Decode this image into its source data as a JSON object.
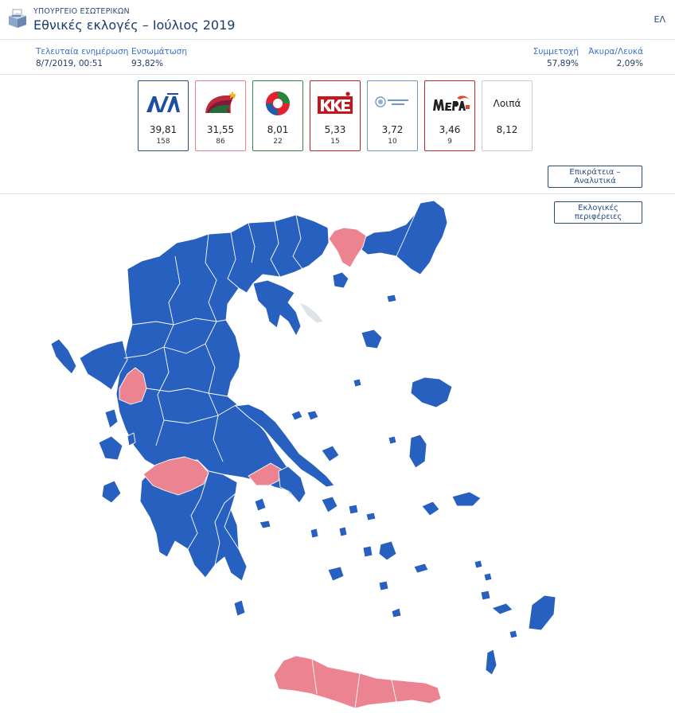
{
  "header": {
    "ministry": "ΥΠΟΥΡΓΕΙΟ ΕΣΩΤΕΡΙΚΩΝ",
    "title": "Εθνικές εκλογές – Ιούλιος 2019",
    "lang": "ΕΛ",
    "logo_icon": "ballot-box-icon"
  },
  "info": {
    "last_update_label": "Τελευταία ενημέρωση",
    "last_update_value": "8/7/2019, 00:51",
    "integration_label": "Ενσωμάτωση",
    "integration_value": "93,82%",
    "turnout_label": "Συμμετοχή",
    "turnout_value": "57,89%",
    "invalid_label": "Άκυρα/Λευκά",
    "invalid_value": "2,09%"
  },
  "parties": [
    {
      "emblem": "nd-logo",
      "pct": "39,81",
      "seats": "158",
      "color": "#2a4a8a"
    },
    {
      "emblem": "syriza-logo",
      "pct": "31,55",
      "seats": "86",
      "color": "#e8808e"
    },
    {
      "emblem": "kinal-logo",
      "pct": "8,01",
      "seats": "22",
      "color": "#2f8a4a"
    },
    {
      "emblem": "kke-logo",
      "pct": "5,33",
      "seats": "15",
      "color": "#b8212a"
    },
    {
      "emblem": "elliniki-lysi-logo",
      "pct": "3,72",
      "seats": "10",
      "color": "#6f97c8"
    },
    {
      "emblem": "mera25-logo",
      "pct": "3,46",
      "seats": "9",
      "color": "#c0282e"
    },
    {
      "emblem": "others",
      "label": "Λοιπά",
      "pct": "8,12",
      "seats": "",
      "color": "#cccccc"
    }
  ],
  "buttons": {
    "analytics": "Επικράτεια – Αναλυτικά",
    "regions": "Εκλογικές περιφέρειες"
  },
  "map_colors": {
    "nd": "#2860c0",
    "syriza": "#ec8391",
    "no_data": "#dfe3e8"
  }
}
